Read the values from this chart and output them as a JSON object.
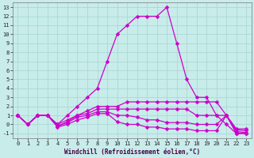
{
  "xlabel": "Windchill (Refroidissement éolien,°C)",
  "background_color": "#c8ecea",
  "grid_color": "#aad8d4",
  "line_color": "#cc00cc",
  "xlim": [
    -0.5,
    23.5
  ],
  "ylim": [
    -1.5,
    13.5
  ],
  "xticks": [
    0,
    1,
    2,
    3,
    4,
    5,
    6,
    7,
    8,
    9,
    10,
    11,
    12,
    13,
    14,
    15,
    16,
    17,
    18,
    19,
    20,
    21,
    22,
    23
  ],
  "yticks": [
    -1,
    0,
    1,
    2,
    3,
    4,
    5,
    6,
    7,
    8,
    9,
    10,
    11,
    12,
    13
  ],
  "lines": [
    {
      "x": [
        0,
        1,
        2,
        3,
        4,
        5,
        6,
        7,
        8,
        9,
        10,
        11,
        12,
        13,
        14,
        15,
        16,
        17,
        18,
        19,
        20,
        21,
        22,
        23
      ],
      "y": [
        1,
        0,
        1,
        1,
        0,
        1,
        2,
        3,
        4,
        7,
        10,
        11,
        12,
        12,
        12,
        13,
        9,
        5,
        3,
        3,
        1,
        0,
        -1,
        -1
      ]
    },
    {
      "x": [
        0,
        1,
        2,
        3,
        4,
        5,
        6,
        7,
        8,
        9,
        10,
        11,
        12,
        13,
        14,
        15,
        16,
        17,
        18,
        19,
        20,
        21,
        22,
        23
      ],
      "y": [
        1,
        0,
        1,
        1,
        0,
        0.5,
        1,
        1.5,
        2,
        2,
        2,
        2.5,
        2.5,
        2.5,
        2.5,
        2.5,
        2.5,
        2.5,
        2.5,
        2.5,
        2.5,
        1,
        -0.5,
        -0.5
      ]
    },
    {
      "x": [
        0,
        1,
        2,
        3,
        4,
        5,
        6,
        7,
        8,
        9,
        10,
        11,
        12,
        13,
        14,
        15,
        16,
        17,
        18,
        19,
        20,
        21,
        22,
        23
      ],
      "y": [
        1,
        0,
        1,
        1,
        -0.2,
        0.3,
        1,
        1.2,
        1.7,
        1.7,
        1.7,
        1.7,
        1.7,
        1.7,
        1.7,
        1.7,
        1.7,
        1.7,
        1.0,
        1.0,
        1.0,
        1,
        -0.6,
        -0.7
      ]
    },
    {
      "x": [
        0,
        1,
        2,
        3,
        4,
        5,
        6,
        7,
        8,
        9,
        10,
        11,
        12,
        13,
        14,
        15,
        16,
        17,
        18,
        19,
        20,
        21,
        22,
        23
      ],
      "y": [
        1,
        0,
        1,
        1,
        -0.2,
        0.2,
        0.8,
        1.0,
        1.4,
        1.4,
        1.0,
        1.0,
        0.8,
        0.5,
        0.5,
        0.2,
        0.2,
        0.2,
        0.0,
        0.0,
        0.0,
        1,
        -0.8,
        -0.9
      ]
    },
    {
      "x": [
        0,
        1,
        2,
        3,
        4,
        5,
        6,
        7,
        8,
        9,
        10,
        11,
        12,
        13,
        14,
        15,
        16,
        17,
        18,
        19,
        20,
        21,
        22,
        23
      ],
      "y": [
        1,
        0,
        1,
        1,
        -0.3,
        0.0,
        0.5,
        0.8,
        1.2,
        1.2,
        0.3,
        0.0,
        0.0,
        -0.3,
        -0.3,
        -0.5,
        -0.5,
        -0.5,
        -0.7,
        -0.7,
        -0.7,
        1,
        -1.0,
        -1.0
      ]
    }
  ],
  "figsize": [
    3.2,
    2.0
  ],
  "dpi": 100,
  "tick_labelsize": 5,
  "xlabel_fontsize": 5.5,
  "linewidth": 0.9,
  "markersize": 2.5
}
